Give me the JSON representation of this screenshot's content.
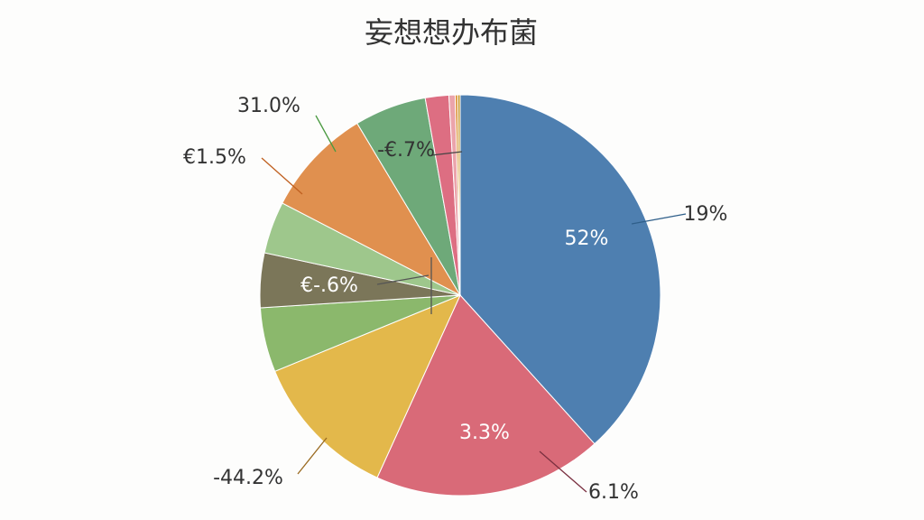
{
  "chart_data": {
    "type": "pie",
    "title": "妄想想办布菌",
    "values": [
      38.3,
      18.5,
      12,
      5.2,
      4.4,
      4.2,
      8.8,
      5.8,
      1.9,
      0.5,
      0.2,
      0.2
    ],
    "colors": [
      "#4e7fb0",
      "#d96a78",
      "#e3b84b",
      "#8bb86c",
      "#7b7659",
      "#9ec78c",
      "#e0904f",
      "#6ea979",
      "#dd6e82",
      "#eba4ab",
      "#d98a2a",
      "#c89a30"
    ],
    "annotations": [
      "52%",
      "19%",
      "3.3%",
      "6.1%",
      "-44.2%",
      "€-.6%",
      "€1.5%",
      "31.0%",
      "-€.7%"
    ]
  }
}
